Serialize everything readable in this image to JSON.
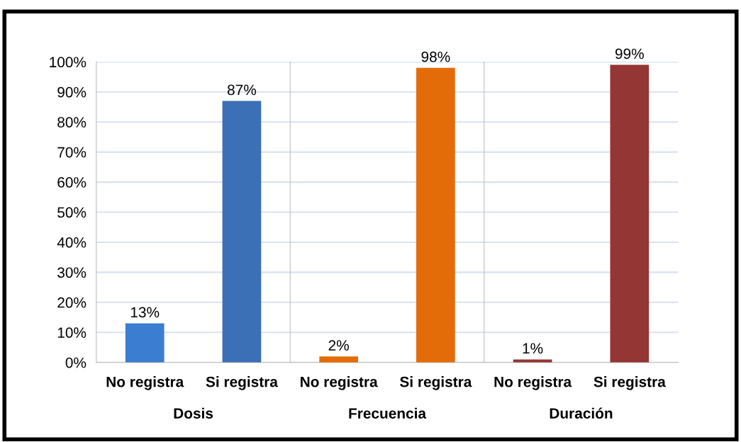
{
  "chart_data": [
    {
      "type": "bar",
      "xlabel": "Dosis",
      "categories": [
        "No registra",
        "Si registra"
      ],
      "values": [
        13,
        87
      ],
      "value_labels": [
        "13%",
        "87%"
      ],
      "colors": [
        "#3b7dd0",
        "#3b6fb6"
      ],
      "ylim": [
        0,
        100
      ],
      "yticks": [
        {
          "value": 0,
          "label": "0%"
        },
        {
          "value": 10,
          "label": "10%"
        },
        {
          "value": 20,
          "label": "20%"
        },
        {
          "value": 30,
          "label": "30%"
        },
        {
          "value": 40,
          "label": "40%"
        },
        {
          "value": 50,
          "label": "50%"
        },
        {
          "value": 60,
          "label": "60%"
        },
        {
          "value": 70,
          "label": "70%"
        },
        {
          "value": 80,
          "label": "80%"
        },
        {
          "value": 90,
          "label": "90%"
        },
        {
          "value": 100,
          "label": "100%"
        }
      ],
      "grid": "y"
    },
    {
      "type": "bar",
      "xlabel": "Frecuencia",
      "categories": [
        "No registra",
        "Si registra"
      ],
      "values": [
        2,
        98
      ],
      "value_labels": [
        "2%",
        "98%"
      ],
      "colors": [
        "#e36c09",
        "#e36c09"
      ],
      "ylim": [
        0,
        100
      ],
      "yticks": [
        {
          "value": 0,
          "label": null
        },
        {
          "value": 10,
          "label": null
        },
        {
          "value": 20,
          "label": null
        },
        {
          "value": 30,
          "label": null
        },
        {
          "value": 40,
          "label": null
        },
        {
          "value": 50,
          "label": null
        },
        {
          "value": 60,
          "label": null
        },
        {
          "value": 70,
          "label": null
        },
        {
          "value": 80,
          "label": null
        },
        {
          "value": 90,
          "label": null
        },
        {
          "value": 100,
          "label": null
        }
      ],
      "grid": "y",
      "tick_labels": "x"
    },
    {
      "type": "bar",
      "xlabel": "Duración",
      "categories": [
        "No registra",
        "Si registra"
      ],
      "values": [
        1,
        99
      ],
      "value_labels": [
        "1%",
        "99%"
      ],
      "colors": [
        "#943634",
        "#943634"
      ],
      "ylim": [
        0,
        100
      ],
      "yticks": [
        {
          "value": 0,
          "label": null
        },
        {
          "value": 10,
          "label": null
        },
        {
          "value": 20,
          "label": null
        },
        {
          "value": 30,
          "label": null
        },
        {
          "value": 40,
          "label": null
        },
        {
          "value": 50,
          "label": null
        },
        {
          "value": 60,
          "label": null
        },
        {
          "value": 70,
          "label": null
        },
        {
          "value": 80,
          "label": null
        },
        {
          "value": 90,
          "label": null
        },
        {
          "value": 100,
          "label": null
        }
      ],
      "grid": "y",
      "tick_labels": "x"
    }
  ]
}
